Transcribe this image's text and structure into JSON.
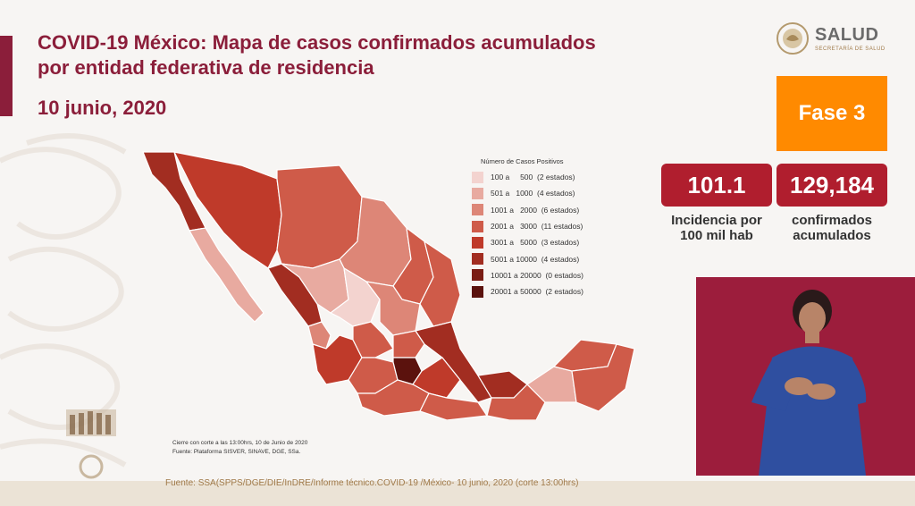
{
  "header": {
    "title_line1": "COVID-19 México: Mapa de casos confirmados acumulados",
    "title_line2": "por entidad federativa de residencia",
    "date": "10 junio, 2020"
  },
  "logo": {
    "name": "SALUD",
    "subtitle": "SECRETARÍA DE SALUD"
  },
  "phase": "Fase 3",
  "stats": {
    "incidence_value": "101.1",
    "incidence_label_1": "Incidencia por",
    "incidence_label_2": "100 mil hab",
    "confirmed_value": "129,184",
    "confirmed_label_1": "confirmados",
    "confirmed_label_2": "acumulados"
  },
  "legend": {
    "title": "Número de Casos Positivos",
    "items": [
      {
        "label": "100 a     500  (2 estados)",
        "color": "#f3d3cf"
      },
      {
        "label": "501 a   1000  (4 estados)",
        "color": "#e8aaa0"
      },
      {
        "label": "1001 a   2000  (6 estados)",
        "color": "#dd8677"
      },
      {
        "label": "2001 a   3000  (11 estados)",
        "color": "#cf5b49"
      },
      {
        "label": "3001 a   5000  (3 estados)",
        "color": "#bf3a2a"
      },
      {
        "label": "5001 a 10000  (4 estados)",
        "color": "#a22d21"
      },
      {
        "label": "10001 a 20000  (0 estados)",
        "color": "#7a1c14"
      },
      {
        "label": "20001 a 50000  (2 estados)",
        "color": "#5b120d"
      }
    ]
  },
  "notes": {
    "line1": "Cierre con corte a las 13:00hrs, 10 de Junio de 2020",
    "line2": "Fuente: Plataforma SISVER, SINAVE, DGE, SSa."
  },
  "source": "Fuente: SSA(SPPS/DGE/DIE/InDRE/Informe técnico.COVID-19 /México- 10 junio, 2020 (corte 13:00hrs)",
  "colors": {
    "brand": "#8b1e3a",
    "phase": "#ff8a00",
    "stat_box": "#b01e2e",
    "source_text": "#a07a4a"
  }
}
